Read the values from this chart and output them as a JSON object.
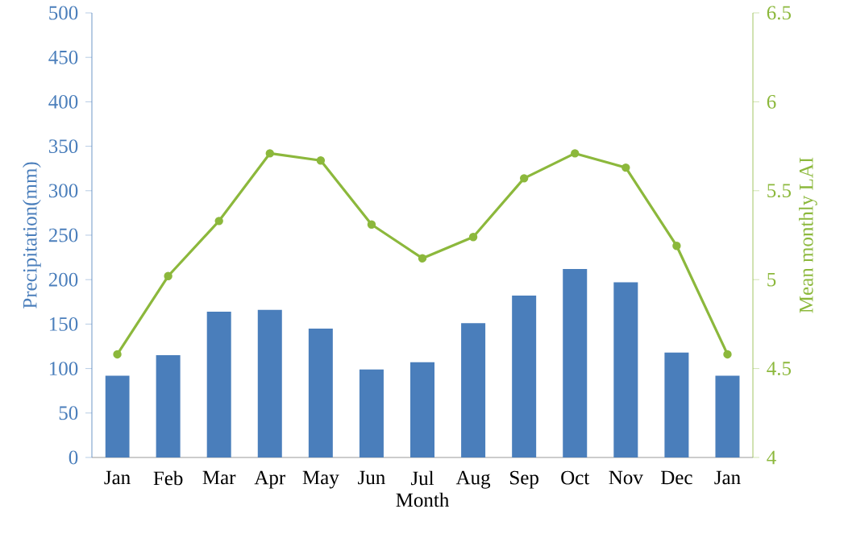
{
  "chart_data": {
    "type": "bar",
    "xlabel": "Month",
    "ylabel": "Precipitation(mm)",
    "y2label": "Mean monthly LAI",
    "categories": [
      "Jan",
      "Feb",
      "Mar",
      "Apr",
      "May",
      "Jun",
      "Jul",
      "Aug",
      "Sep",
      "Oct",
      "Nov",
      "Dec",
      "Jan"
    ],
    "series": [
      {
        "color": "#4a7ebb",
        "values": [
          92,
          115,
          164,
          166,
          145,
          99,
          107,
          151,
          182,
          212,
          197,
          118,
          92
        ]
      },
      {
        "type": "line",
        "axis": "y2",
        "color": "#8cb83c",
        "marker": "circle",
        "values": [
          4.58,
          5.02,
          5.33,
          5.71,
          5.67,
          5.31,
          5.12,
          5.24,
          5.57,
          5.71,
          5.63,
          5.19,
          4.58
        ]
      }
    ],
    "ylim": [
      0,
      500
    ],
    "yticks": [
      0,
      50,
      100,
      150,
      200,
      250,
      300,
      350,
      400,
      450,
      500
    ],
    "y2lim": [
      4,
      6.5
    ],
    "y2ticks": [
      4,
      4.5,
      5,
      5.5,
      6,
      6.5
    ]
  }
}
